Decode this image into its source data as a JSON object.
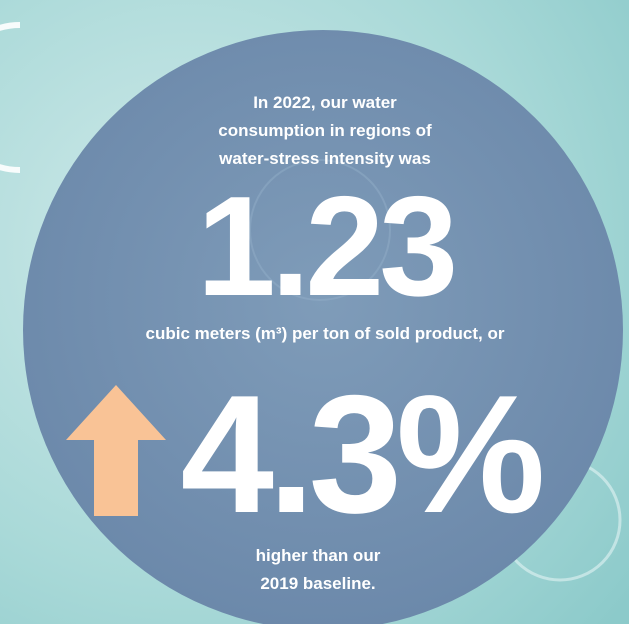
{
  "intro": [
    "In 2022, our water",
    "consumption in regions of",
    "water-stress intensity was"
  ],
  "figure": "1.23",
  "unit": "cubic meters (m³) per ton of sold product, or",
  "change": "4.3%",
  "outro": [
    "higher than our",
    "2019 baseline."
  ]
}
